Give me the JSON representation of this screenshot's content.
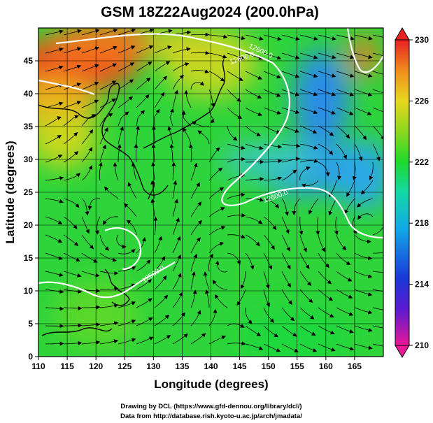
{
  "title": "GSM 18Z22Aug2024 (200.0hPa)",
  "xlabel": "Longitude (degrees)",
  "ylabel": "Latitude  (degrees)",
  "footer": {
    "line1": "Drawing by DCL (https://www.gfd-dennou.org/library/dcl/)",
    "line2": "Data from http://database.rish.kyoto-u.ac.jp/arch/jmadata/"
  },
  "chart_data": {
    "type": "heatmap",
    "title": "GSM 18Z22Aug2024 (200.0hPa)",
    "xlabel": "Longitude (degrees)",
    "ylabel": "Latitude  (degrees)",
    "xlim": [
      110,
      170
    ],
    "ylim": [
      0,
      50
    ],
    "x_ticks": [
      "110",
      "115",
      "120",
      "125",
      "130",
      "135",
      "140",
      "145",
      "150",
      "155",
      "160",
      "165"
    ],
    "y_ticks": [
      "0",
      "5",
      "10",
      "15",
      "20",
      "25",
      "30",
      "35",
      "40",
      "45"
    ],
    "colorbar": {
      "min": 210,
      "max": 230,
      "ticks": [
        "230",
        "226",
        "222",
        "218",
        "214",
        "210"
      ],
      "colors": [
        "#e81898",
        "#5a1ad0",
        "#1a38d8",
        "#12a8e8",
        "#12d8a8",
        "#1ed82c",
        "#8cd81e",
        "#e8d81e",
        "#f08c1e",
        "#e82020"
      ]
    },
    "contour_labels": [
      "12600.0",
      "12600.0",
      "12600.0",
      "12500.0"
    ],
    "grid": true,
    "overlays": [
      "streamlines",
      "coastlines",
      "geopotential height contours (white)"
    ]
  }
}
